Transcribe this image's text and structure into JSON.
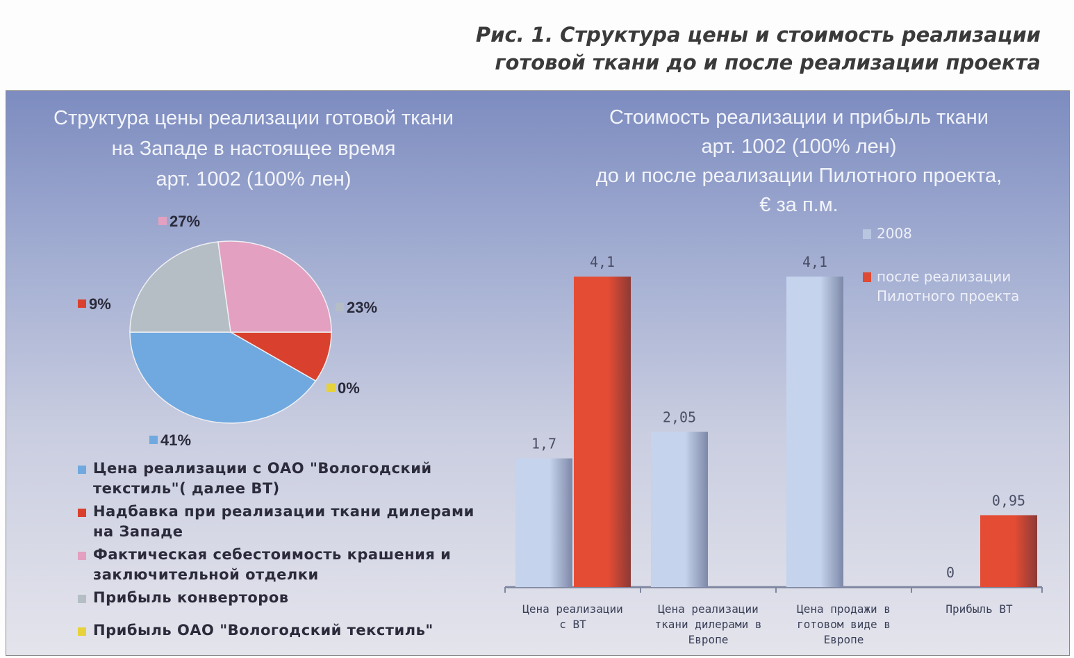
{
  "figure_title": [
    "Рис. 1. Структура цены и стоимость реализации",
    "готовой ткани до и после реализации проекта"
  ],
  "chart_data": [
    {
      "type": "pie",
      "title": [
        "Структура цены реализации готовой ткани",
        "на Западе в настоящее время",
        "арт. 1002 (100% лен)"
      ],
      "slices": [
        {
          "label": "Цена реализации с ОАО \"Вологодский текстиль\"( далее ВТ)",
          "value": 41,
          "display": "41%",
          "color": "#6fa9e0"
        },
        {
          "label": "Надбавка при реализации ткани дилерами на Западе",
          "value": 9,
          "display": "9%",
          "color": "#d9412e"
        },
        {
          "label": "Фактическая себестоимость крашения и заключительной отделки",
          "value": 27,
          "display": "27%",
          "color": "#e3a0c0"
        },
        {
          "label": "Прибыль конверторов",
          "value": 23,
          "display": "23%",
          "color": "#b4bec4"
        },
        {
          "label": "Прибыль ОАО \"Вологодский текстиль\"",
          "value": 0,
          "display": "0%",
          "color": "#e6d23a"
        }
      ],
      "legend_placement": "bottom"
    },
    {
      "type": "bar",
      "title": [
        "Стоимость реализации и прибыль ткани",
        "арт. 1002 (100% лен)",
        "до и после реализации Пилотного проекта,",
        "€ за п.м."
      ],
      "categories": [
        [
          "Цена реализации",
          "с ВТ"
        ],
        [
          "Цена реализации",
          "ткани дилерами в",
          "Европе"
        ],
        [
          "Цена продажи в",
          "готовом виде в",
          "Европе"
        ],
        [
          "Прибыль ВТ"
        ]
      ],
      "series": [
        {
          "name": "2008",
          "values": [
            1.7,
            2.05,
            4.1,
            0
          ],
          "labels": [
            "1,7",
            "2,05",
            "4,1",
            "0"
          ],
          "color": "#b8c6e0"
        },
        {
          "name": "после реализации Пилотного проекта",
          "values": [
            4.1,
            null,
            null,
            0.95
          ],
          "labels": [
            "4,1",
            null,
            null,
            "0,95"
          ],
          "color": "#de4a33"
        }
      ],
      "legend_lines": [
        [
          "2008"
        ],
        [
          "после реализации",
          "Пилотного проекта"
        ]
      ],
      "ylim": [
        0,
        4.5
      ],
      "grid": false,
      "legend_placement": "top-right"
    }
  ]
}
